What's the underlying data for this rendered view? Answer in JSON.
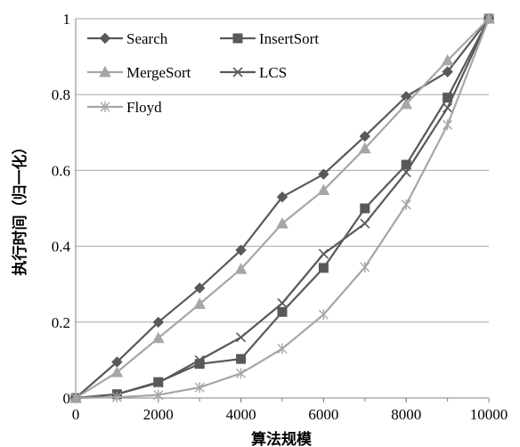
{
  "chart_data": {
    "type": "line",
    "title": "",
    "xlabel": "算法规模",
    "ylabel": "执行时间（归一化）",
    "xlim": [
      0,
      10000
    ],
    "ylim": [
      0,
      1
    ],
    "x_ticks": [
      "0",
      "2000",
      "4000",
      "6000",
      "8000",
      "10000"
    ],
    "y_ticks": [
      "0",
      "0.2",
      "0.4",
      "0.6",
      "0.8",
      "1"
    ],
    "grid": "horizontal",
    "legend_position": "top-left",
    "x": [
      0,
      1000,
      2000,
      3000,
      4000,
      5000,
      6000,
      7000,
      8000,
      9000,
      10000
    ],
    "series": [
      {
        "name": "Search",
        "color": "#595959",
        "marker": "diamond",
        "values": [
          0,
          0.095,
          0.2,
          0.29,
          0.39,
          0.53,
          0.59,
          0.69,
          0.795,
          0.86,
          1
        ]
      },
      {
        "name": "InsertSort",
        "color": "#595959",
        "marker": "square",
        "values": [
          0,
          0.01,
          0.042,
          0.09,
          0.103,
          0.227,
          0.343,
          0.5,
          0.615,
          0.792,
          1
        ]
      },
      {
        "name": "MergeSort",
        "color": "#a6a6a6",
        "marker": "triangle",
        "values": [
          0,
          0.068,
          0.158,
          0.248,
          0.34,
          0.46,
          0.548,
          0.658,
          0.775,
          0.89,
          1
        ]
      },
      {
        "name": "LCS",
        "color": "#595959",
        "marker": "x",
        "values": [
          0,
          0.01,
          0.04,
          0.1,
          0.16,
          0.25,
          0.38,
          0.46,
          0.595,
          0.765,
          1
        ]
      },
      {
        "name": "Floyd",
        "color": "#a6a6a6",
        "marker": "star",
        "values": [
          0,
          0.002,
          0.008,
          0.028,
          0.065,
          0.13,
          0.22,
          0.345,
          0.51,
          0.72,
          1
        ]
      }
    ]
  }
}
